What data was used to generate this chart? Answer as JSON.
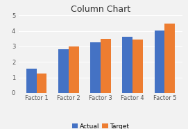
{
  "title": "Column Chart",
  "categories": [
    "Factor 1",
    "Factor 2",
    "Factor 3",
    "Factor 4",
    "Factor 5"
  ],
  "actual": [
    1.55,
    2.83,
    3.25,
    3.62,
    4.05
  ],
  "target": [
    1.25,
    3.0,
    3.48,
    3.45,
    4.48
  ],
  "actual_color": "#4472C4",
  "target_color": "#ED7D31",
  "ylim": [
    0,
    5
  ],
  "yticks": [
    0,
    1,
    2,
    3,
    4,
    5
  ],
  "legend_labels": [
    "Actual",
    "Target"
  ],
  "title_fontsize": 9,
  "tick_fontsize": 6,
  "legend_fontsize": 6.5,
  "bar_width": 0.32,
  "background_color": "#F2F2F2",
  "plot_bg_color": "#F2F2F2"
}
